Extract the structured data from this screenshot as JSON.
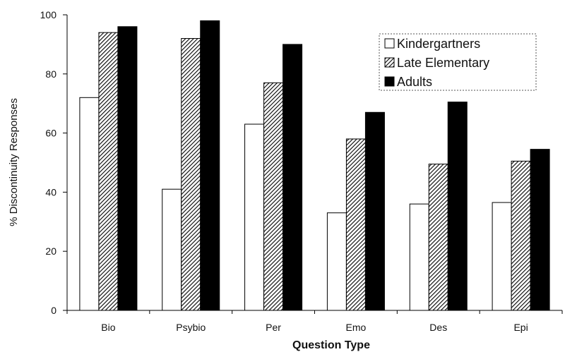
{
  "chart_data": {
    "type": "bar",
    "title": "",
    "xlabel": "Question Type",
    "ylabel": "% Discontinuity Responses",
    "ylim": [
      0,
      100
    ],
    "yticks": [
      0,
      20,
      40,
      60,
      80,
      100
    ],
    "categories": [
      "Bio",
      "Psybio",
      "Per",
      "Emo",
      "Des",
      "Epi"
    ],
    "series": [
      {
        "name": "Kindergartners",
        "fill": "white",
        "values": [
          72,
          41,
          63,
          33,
          36,
          36.5
        ]
      },
      {
        "name": "Late Elementary",
        "fill": "hatch",
        "values": [
          94,
          92,
          77,
          58,
          49.5,
          50.5
        ]
      },
      {
        "name": "Adults",
        "fill": "black",
        "values": [
          96,
          98,
          90,
          67,
          70.5,
          54.5
        ]
      }
    ],
    "legend_position": "top-right",
    "grid": false
  }
}
